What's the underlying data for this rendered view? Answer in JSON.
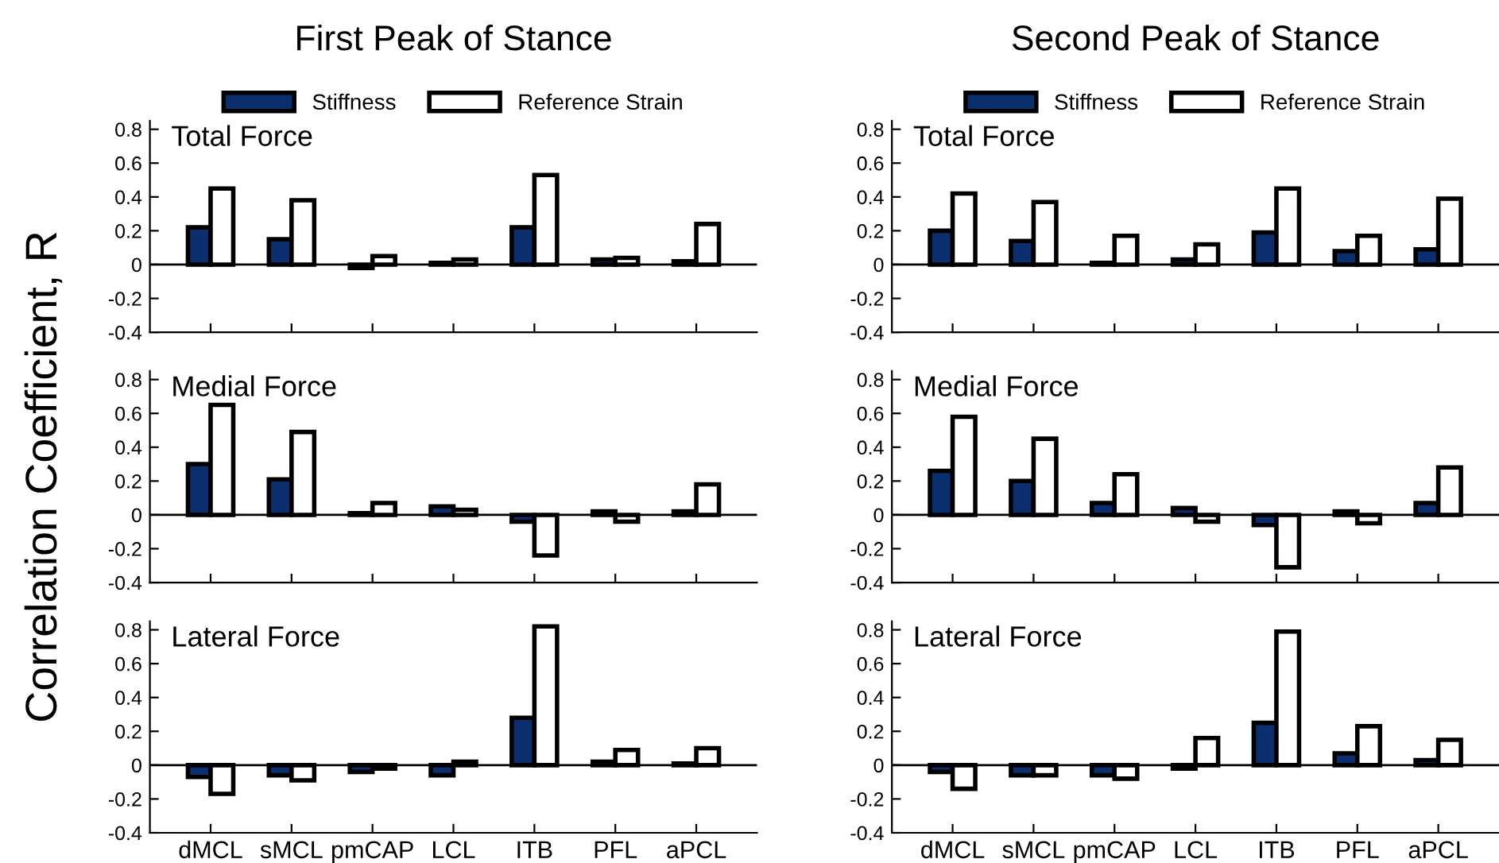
{
  "chart_data": [
    {
      "type": "bar",
      "title": "First Peak of Stance",
      "annotations": [
        "Total Force"
      ],
      "categories": [
        null,
        null,
        null,
        null,
        null,
        null,
        null
      ],
      "series": [
        {
          "name": "Stiffness",
          "color": "#0b2f6e",
          "values": [
            0.22,
            0.15,
            -0.02,
            0.01,
            0.22,
            0.03,
            0.02
          ]
        },
        {
          "name": "Reference Strain",
          "color": "#ffffff",
          "values": [
            0.45,
            0.38,
            0.05,
            0.03,
            0.53,
            0.04,
            0.24
          ]
        }
      ],
      "ylim": [
        -0.4,
        0.85
      ],
      "yticks": [
        -0.4,
        -0.2,
        0,
        0.2,
        0.4,
        0.6,
        0.8
      ],
      "ref_lines": [
        {
          "axis": "y",
          "value": 0
        }
      ],
      "legend": "top",
      "tick_labels": "y",
      "grid": false
    },
    {
      "type": "bar",
      "title": "Second Peak of Stance",
      "annotations": [
        "Total Force"
      ],
      "categories": [
        null,
        null,
        null,
        null,
        null,
        null,
        null
      ],
      "series": [
        {
          "name": "Stiffness",
          "color": "#0b2f6e",
          "values": [
            0.2,
            0.14,
            0.01,
            0.03,
            0.19,
            0.08,
            0.09
          ]
        },
        {
          "name": "Reference Strain",
          "color": "#ffffff",
          "values": [
            0.42,
            0.37,
            0.17,
            0.12,
            0.45,
            0.17,
            0.39
          ]
        }
      ],
      "ylim": [
        -0.4,
        0.85
      ],
      "yticks": [
        -0.4,
        -0.2,
        0,
        0.2,
        0.4,
        0.6,
        0.8
      ],
      "ref_lines": [
        {
          "axis": "y",
          "value": 0
        }
      ],
      "legend": "top",
      "tick_labels": "y",
      "grid": false
    },
    {
      "type": "bar",
      "ylabel": "Correlation Coefficient, R",
      "annotations": [
        "Medial Force"
      ],
      "categories": [
        null,
        null,
        null,
        null,
        null,
        null,
        null
      ],
      "series": [
        {
          "color": "#0b2f6e",
          "values": [
            0.3,
            0.21,
            0.01,
            0.05,
            -0.04,
            0.02,
            0.02
          ]
        },
        {
          "color": "#ffffff",
          "values": [
            0.65,
            0.49,
            0.07,
            0.03,
            -0.24,
            -0.04,
            0.18
          ]
        }
      ],
      "ylim": [
        -0.4,
        0.85
      ],
      "yticks": [
        -0.4,
        -0.2,
        0,
        0.2,
        0.4,
        0.6,
        0.8
      ],
      "ref_lines": [
        {
          "axis": "y",
          "value": 0
        }
      ],
      "tick_labels": "y",
      "grid": false
    },
    {
      "type": "bar",
      "annotations": [
        "Medial Force"
      ],
      "categories": [
        null,
        null,
        null,
        null,
        null,
        null,
        null
      ],
      "series": [
        {
          "color": "#0b2f6e",
          "values": [
            0.26,
            0.2,
            0.07,
            0.04,
            -0.06,
            0.02,
            0.07
          ]
        },
        {
          "color": "#ffffff",
          "values": [
            0.58,
            0.45,
            0.24,
            -0.04,
            -0.31,
            -0.05,
            0.28
          ]
        }
      ],
      "ylim": [
        -0.4,
        0.85
      ],
      "yticks": [
        -0.4,
        -0.2,
        0,
        0.2,
        0.4,
        0.6,
        0.8
      ],
      "ref_lines": [
        {
          "axis": "y",
          "value": 0
        }
      ],
      "tick_labels": "y",
      "grid": false
    },
    {
      "type": "bar",
      "annotations": [
        "Lateral Force"
      ],
      "categories": [
        "dMCL",
        "sMCL",
        "pmCAP",
        "LCL",
        "ITB",
        "PFL",
        "aPCL"
      ],
      "series": [
        {
          "color": "#0b2f6e",
          "values": [
            -0.07,
            -0.06,
            -0.04,
            -0.06,
            0.28,
            0.02,
            0.01
          ]
        },
        {
          "color": "#ffffff",
          "values": [
            -0.17,
            -0.09,
            -0.02,
            0.02,
            0.82,
            0.09,
            0.1
          ]
        }
      ],
      "ylim": [
        -0.4,
        0.85
      ],
      "yticks": [
        -0.4,
        -0.2,
        0,
        0.2,
        0.4,
        0.6,
        0.8
      ],
      "ref_lines": [
        {
          "axis": "y",
          "value": 0
        }
      ],
      "grid": false
    },
    {
      "type": "bar",
      "annotations": [
        "Lateral Force"
      ],
      "categories": [
        "dMCL",
        "sMCL",
        "pmCAP",
        "LCL",
        "ITB",
        "PFL",
        "aPCL"
      ],
      "series": [
        {
          "color": "#0b2f6e",
          "values": [
            -0.04,
            -0.06,
            -0.06,
            -0.02,
            0.25,
            0.07,
            0.03
          ]
        },
        {
          "color": "#ffffff",
          "values": [
            -0.14,
            -0.06,
            -0.08,
            0.16,
            0.79,
            0.23,
            0.15
          ]
        }
      ],
      "ylim": [
        -0.4,
        0.85
      ],
      "yticks": [
        -0.4,
        -0.2,
        0,
        0.2,
        0.4,
        0.6,
        0.8
      ],
      "ref_lines": [
        {
          "axis": "y",
          "value": 0
        }
      ],
      "grid": false
    }
  ]
}
